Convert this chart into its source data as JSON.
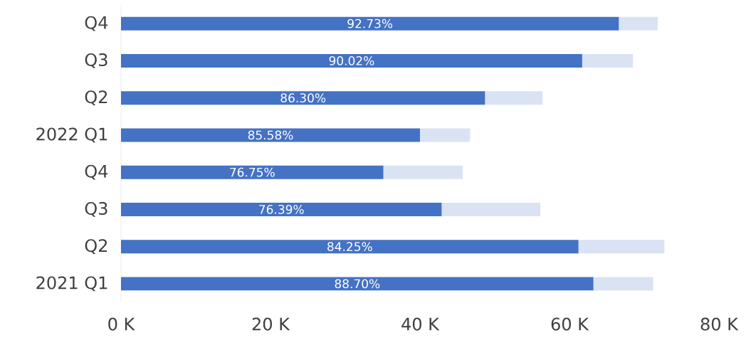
{
  "chart_data": {
    "type": "bar",
    "orientation": "horizontal",
    "stacked": true,
    "categories": [
      "Q4",
      "Q3",
      "Q2",
      "2022 Q1",
      "Q4",
      "Q3",
      "Q2",
      "2021 Q1"
    ],
    "series": [
      {
        "color": "#4472c4",
        "values": [
          66.6,
          61.7,
          48.7,
          40.0,
          35.1,
          42.9,
          61.2,
          63.2
        ]
      },
      {
        "color": "#dae3f3",
        "values": [
          5.2,
          6.8,
          7.7,
          6.7,
          10.6,
          13.2,
          11.5,
          8.0
        ]
      }
    ],
    "annotations": [
      "92.73%",
      "90.02%",
      "86.30%",
      "85.58%",
      "76.75%",
      "76.39%",
      "84.25%",
      "88.70%"
    ],
    "xlim": [
      0,
      80
    ],
    "xticks": [
      {
        "value": 0,
        "label": "0 K"
      },
      {
        "value": 20,
        "label": "20 K"
      },
      {
        "value": 40,
        "label": "40 K"
      },
      {
        "value": 60,
        "label": "60 K"
      },
      {
        "value": 80,
        "label": "80 K"
      }
    ]
  }
}
